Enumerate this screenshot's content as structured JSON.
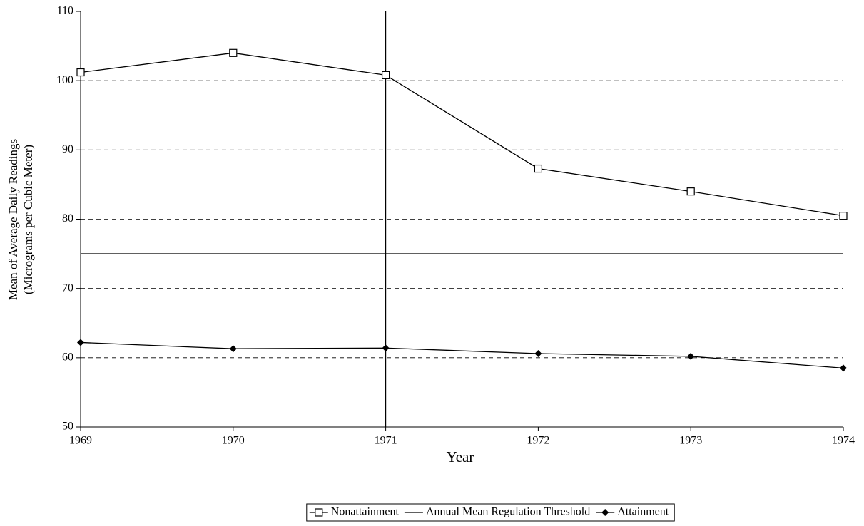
{
  "chart_data": {
    "type": "line",
    "ylabel": [
      "Mean of Average Daily Readings",
      "(Micrograms per Cubic Meter)"
    ],
    "xlabel": "Year",
    "x": [
      1969,
      1970,
      1971,
      1972,
      1973,
      1974
    ],
    "xlim": [
      1969,
      1974
    ],
    "xticks": [
      1969,
      1970,
      1971,
      1972,
      1973,
      1974
    ],
    "ylim": [
      50,
      110
    ],
    "yticks": [
      50,
      60,
      70,
      80,
      90,
      100,
      110
    ],
    "grid": true,
    "legend": "bottom",
    "vline_x": 1971,
    "series": [
      {
        "name": "Nonattainment",
        "color": "#000000",
        "marker": "open-square",
        "values": [
          101.2,
          104.0,
          100.8,
          87.3,
          84.0,
          80.5
        ]
      },
      {
        "name": "Annual Mean Regulation Threshold",
        "color": "#000000",
        "marker": "none",
        "values": [
          75,
          75,
          75,
          75,
          75,
          75
        ]
      },
      {
        "name": "Attainment",
        "color": "#000000",
        "marker": "diamond",
        "values": [
          62.2,
          61.3,
          61.4,
          60.6,
          60.2,
          58.5
        ]
      }
    ]
  }
}
